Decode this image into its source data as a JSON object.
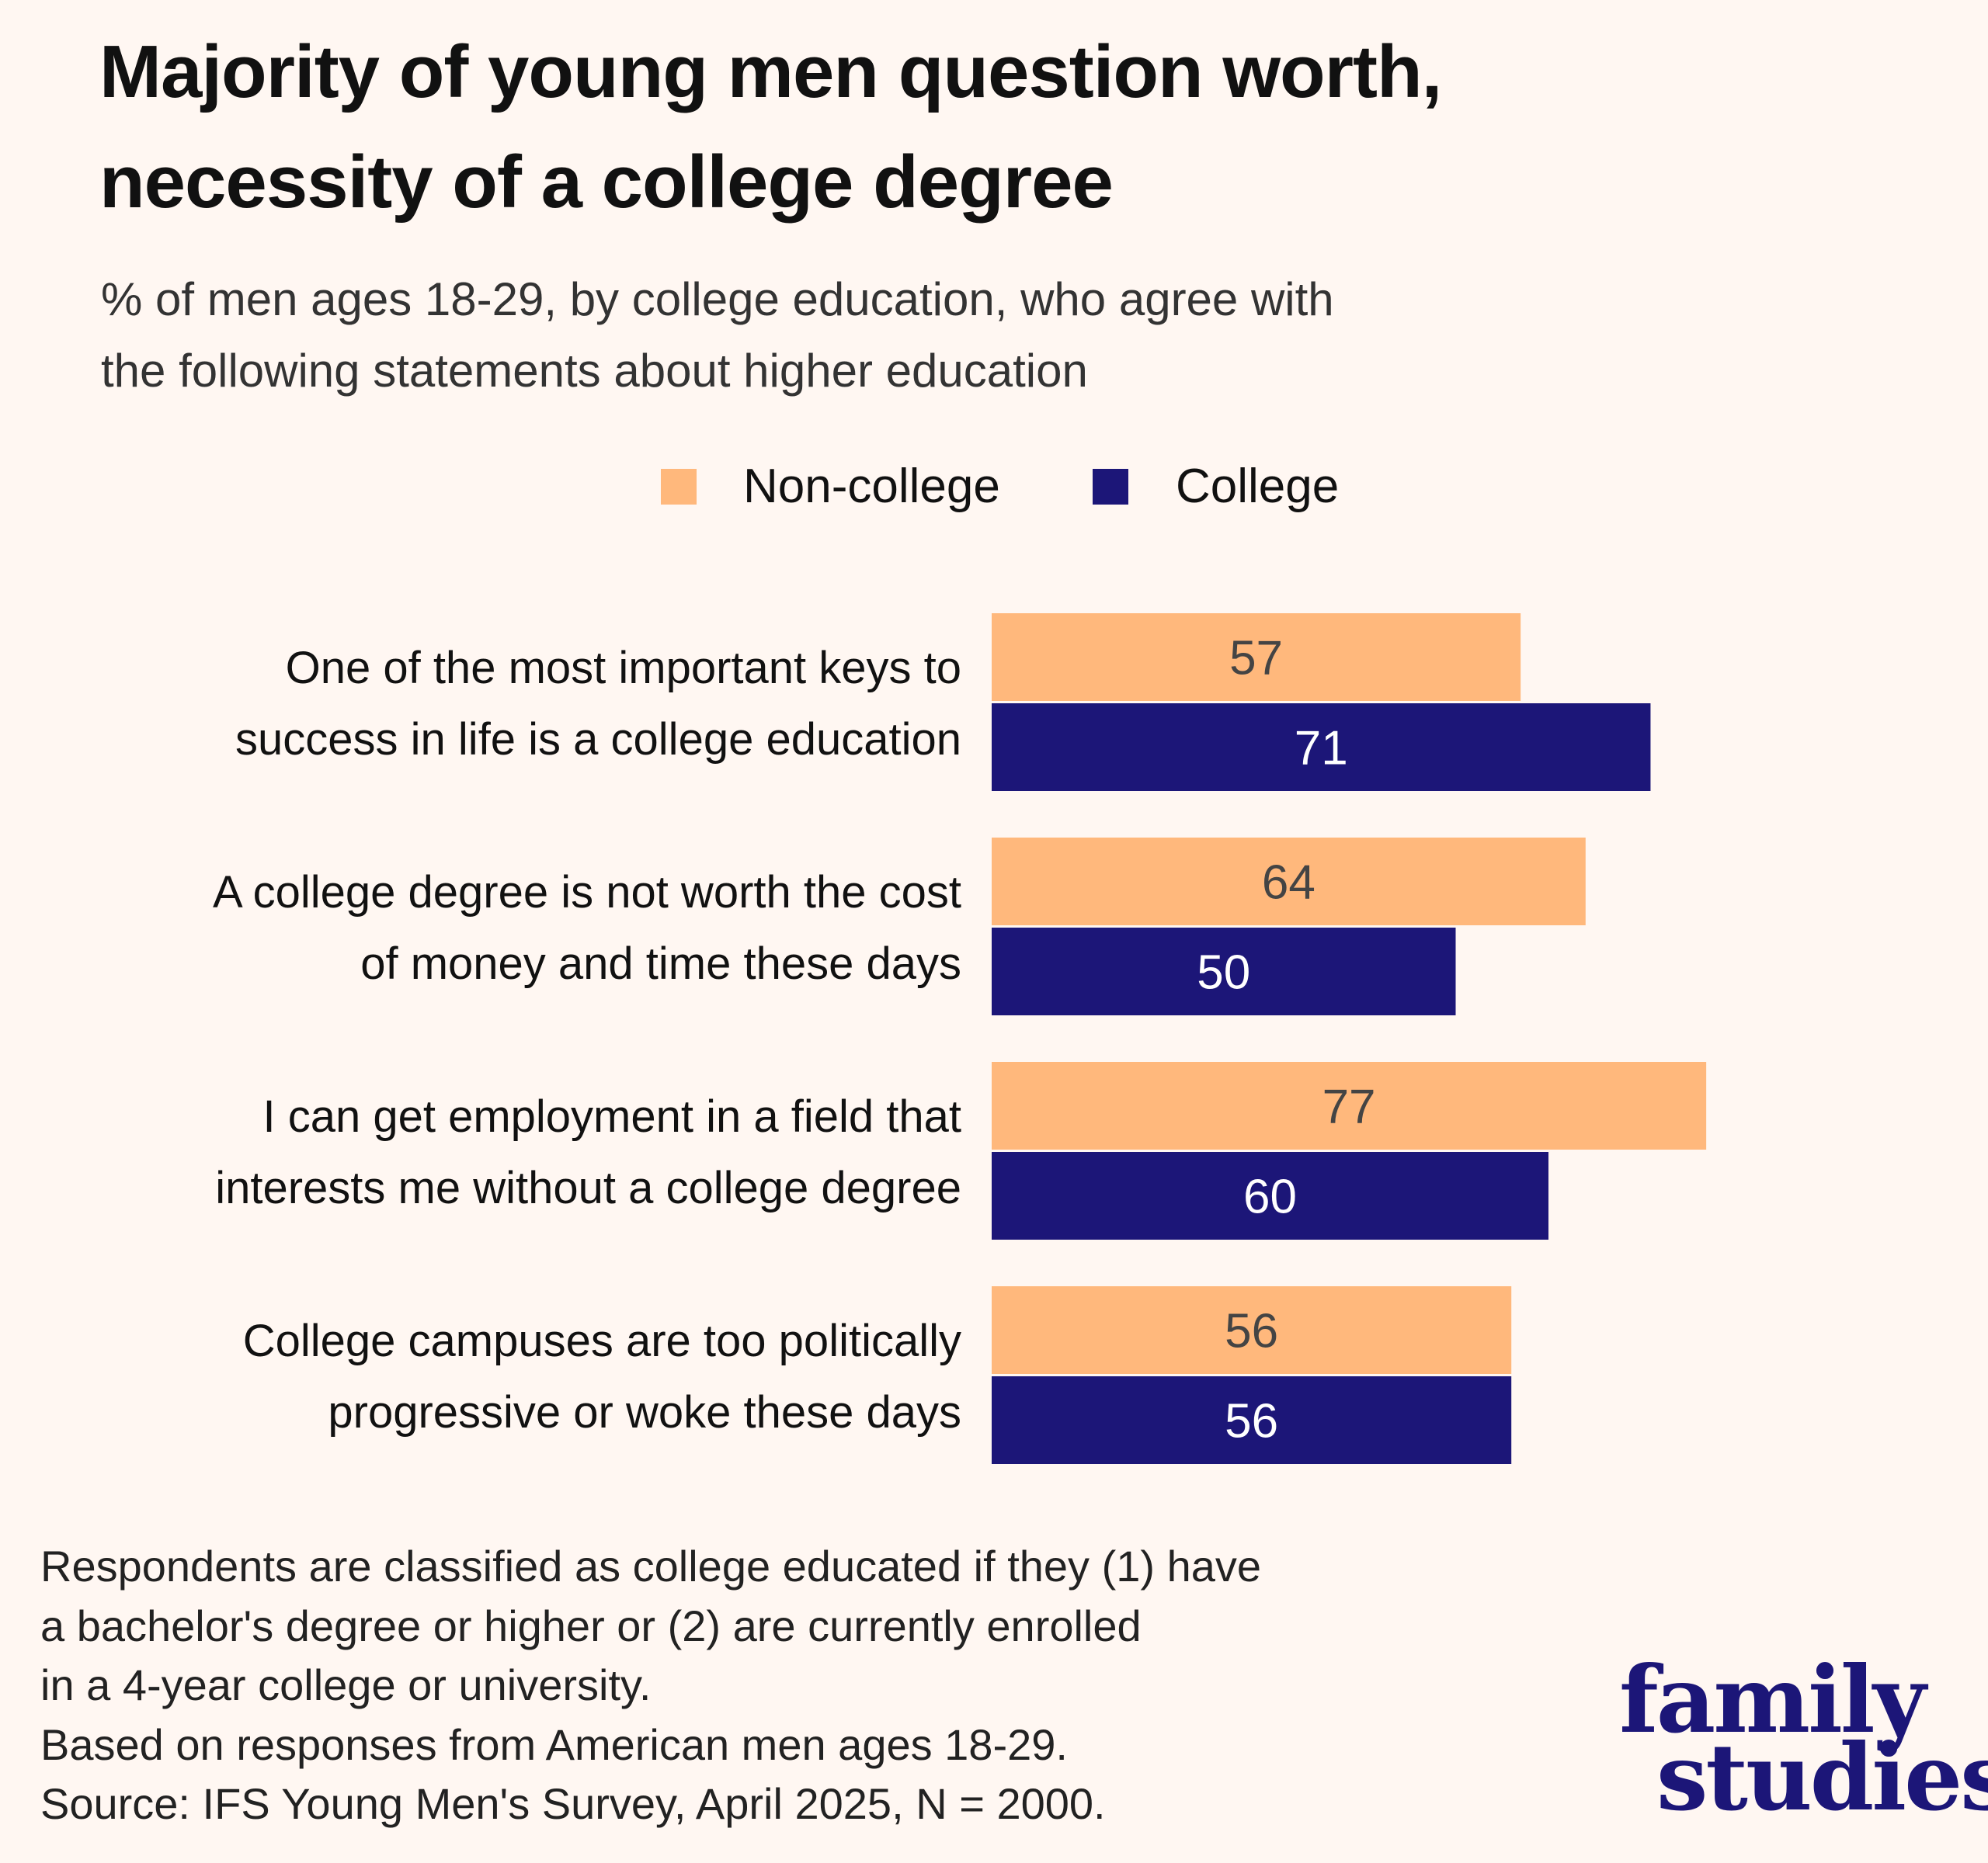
{
  "title": [
    "Majority of young men question worth,",
    "necessity of a college degree"
  ],
  "subtitle": [
    "% of men ages 18-29, by college education, who agree with",
    "the following statements about higher education"
  ],
  "colors": {
    "background": "#fff7f2",
    "non_college": "#ffb87c",
    "college": "#1c1678",
    "non_college_label": "#444444",
    "college_label": "#ffffff"
  },
  "chart_data": {
    "type": "bar",
    "orientation": "horizontal",
    "categories": [
      [
        "One of the most important keys to",
        "success in life is a college education"
      ],
      [
        "A college degree is not worth the cost",
        "of money and time these days"
      ],
      [
        "I can get employment in a field that",
        "interests me without a college degree"
      ],
      [
        "College campuses are too politically",
        "progressive or woke these days"
      ]
    ],
    "series": [
      {
        "name": "Non-college",
        "values": [
          57,
          64,
          77,
          56
        ]
      },
      {
        "name": "College",
        "values": [
          71,
          50,
          60,
          56
        ]
      }
    ],
    "xlim": [
      0,
      100
    ],
    "grid": false,
    "axes_visible": false,
    "data_labels": true,
    "legend_placement": "top"
  },
  "footnote": [
    "Respondents are classified as college educated if they (1) have",
    "a bachelor's degree or higher or (2) are currently enrolled",
    "in a 4-year college or university.",
    "Based on responses from American men ages 18-29.",
    "Source: IFS Young Men's Survey, April 2025, N = 2000."
  ],
  "logo": [
    "family",
    "studies"
  ]
}
